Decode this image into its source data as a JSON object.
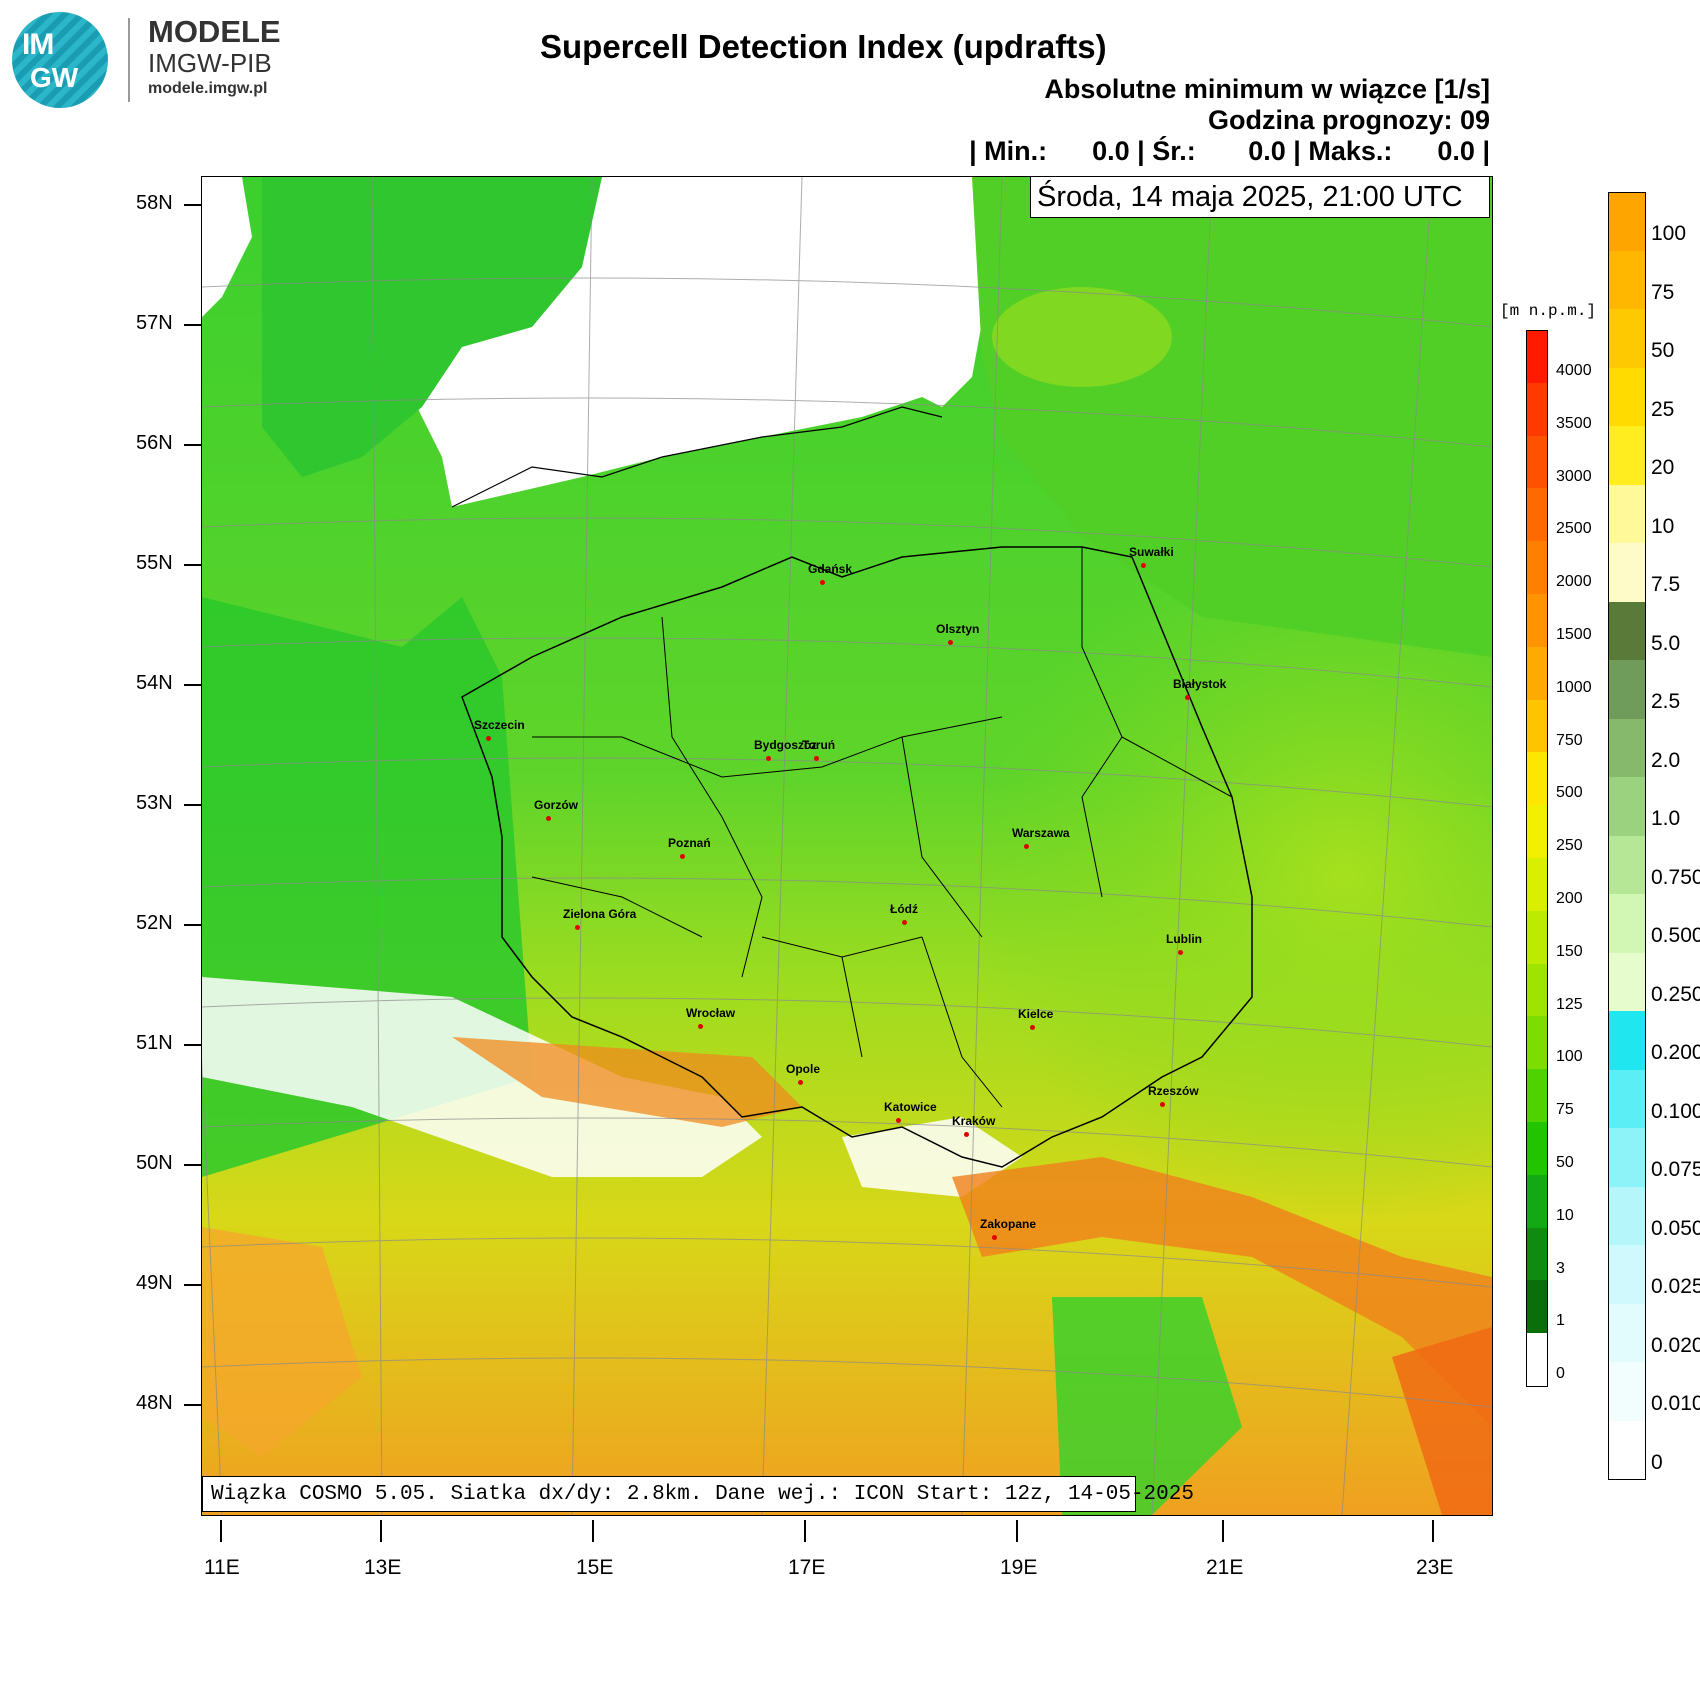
{
  "logo": {
    "line1": "IM",
    "line2": "GW"
  },
  "brand": {
    "name": "MODELE",
    "org": "IMGW-PIB",
    "url": "modele.imgw.pl"
  },
  "header": {
    "title": "Supercell Detection Index (updrafts)",
    "subtitle1": "Absolutne minimum w wiązce [1/s]",
    "subtitle2": "Godzina prognozy: 09",
    "stats": "| Min.:      0.0 | Śr.:       0.0 | Maks.:      0.0 |",
    "date": "Środa, 14 maja 2025, 21:00 UTC"
  },
  "footer": "Wiązka COSMO 5.05. Siatka dx/dy: 2.8km. Dane wej.: ICON Start: 12z, 14-05-2025",
  "axes": {
    "lat_labels": [
      "58N",
      "57N",
      "56N",
      "55N",
      "54N",
      "53N",
      "52N",
      "51N",
      "50N",
      "49N",
      "48N"
    ],
    "lon_labels": [
      "11E",
      "13E",
      "15E",
      "17E",
      "19E",
      "21E",
      "23E"
    ]
  },
  "cities": [
    {
      "name": "Gdańsk"
    },
    {
      "name": "Olsztyn"
    },
    {
      "name": "Suwałki"
    },
    {
      "name": "Białystok"
    },
    {
      "name": "Szczecin"
    },
    {
      "name": "Bydgoszcz"
    },
    {
      "name": "Toruń"
    },
    {
      "name": "Gorzów"
    },
    {
      "name": "Poznań"
    },
    {
      "name": "Warszawa"
    },
    {
      "name": "Zielona Góra"
    },
    {
      "name": "Łódź"
    },
    {
      "name": "Lublin"
    },
    {
      "name": "Wrocław"
    },
    {
      "name": "Kielce"
    },
    {
      "name": "Opole"
    },
    {
      "name": "Rzeszów"
    },
    {
      "name": "Katowice"
    },
    {
      "name": "Kraków"
    },
    {
      "name": "Zakopane"
    }
  ],
  "legend_main": {
    "labels": [
      "100",
      "75",
      "50",
      "25",
      "20",
      "10",
      "7.5",
      "5.0",
      "2.5",
      "2.0",
      "1.0",
      "0.750",
      "0.500",
      "0.250",
      "0.200",
      "0.100",
      "0.075",
      "0.050",
      "0.025",
      "0.020",
      "0.010",
      "0"
    ],
    "colors": [
      "#ffa500",
      "#ffb700",
      "#ffc900",
      "#ffdb00",
      "#ffed20",
      "#fff99a",
      "#fffbc8",
      "#5a7a3a",
      "#6f9c5a",
      "#86b96c",
      "#9bd27f",
      "#b6e797",
      "#d2f6b3",
      "#e6fccd",
      "#20e6f0",
      "#5ceef5",
      "#8ef3f8",
      "#b4f6fa",
      "#cff9fc",
      "#e2fbfd",
      "#f2fdfe",
      "#ffffff"
    ]
  },
  "legend_elev": {
    "unit": "[m n.p.m.]",
    "labels": [
      "4000",
      "3500",
      "3000",
      "2500",
      "2000",
      "1500",
      "1000",
      "750",
      "500",
      "250",
      "200",
      "150",
      "125",
      "100",
      "75",
      "50",
      "10",
      "3",
      "1",
      "0"
    ],
    "colors": [
      "#ff1a00",
      "#ff3a00",
      "#ff5200",
      "#ff6a00",
      "#ff8000",
      "#ff9400",
      "#ffaa00",
      "#ffc400",
      "#ffe600",
      "#f0f000",
      "#d8f000",
      "#bdeb00",
      "#9ee400",
      "#7ddc00",
      "#4fd200",
      "#22c400",
      "#14a814",
      "#0f8c0f",
      "#0a6e0a",
      "#ffffff"
    ]
  }
}
